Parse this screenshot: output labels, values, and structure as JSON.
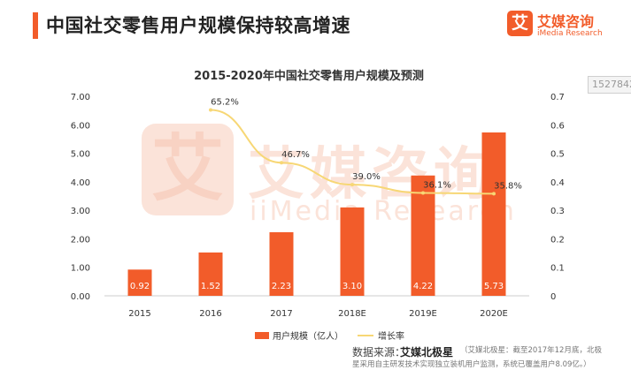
{
  "header": {
    "title": "中国社交零售用户规模保持较高增速",
    "brand_mark": "艾",
    "brand_name": "艾媒咨询",
    "brand_sub": "iMedia Research"
  },
  "side_tab": "1527842",
  "watermark": {
    "mark": "艾",
    "name": "艾媒咨询",
    "sub": "iiMedia Research"
  },
  "colors": {
    "bar": "#f25c2a",
    "line": "#f7d775",
    "accent": "#f25c2a"
  },
  "chart_data": {
    "type": "bar",
    "title": "2015-2020年中国社交零售用户规模及预测",
    "categories": [
      "2015",
      "2016",
      "2017",
      "2018E",
      "2019E",
      "2020E"
    ],
    "series": [
      {
        "name": "用户规模（亿人）",
        "type": "bar",
        "axis": "left",
        "values": [
          0.92,
          1.52,
          2.23,
          3.1,
          4.22,
          5.73
        ],
        "labels": [
          "0.92",
          "1.52",
          "2.23",
          "3.10",
          "4.22",
          "5.73"
        ]
      },
      {
        "name": "增长率",
        "type": "line",
        "axis": "right",
        "values": [
          null,
          0.652,
          0.467,
          0.39,
          0.361,
          0.358
        ],
        "labels": [
          "",
          "65.2%",
          "46.7%",
          "39.0%",
          "36.1%",
          "35.8%"
        ]
      }
    ],
    "ylim": [
      0,
      7
    ],
    "y2lim": [
      0,
      0.7
    ],
    "yticks": [
      "0.00",
      "1.00",
      "2.00",
      "3.00",
      "4.00",
      "5.00",
      "6.00",
      "7.00"
    ],
    "y2ticks": [
      "0",
      "0.1",
      "0.2",
      "0.3",
      "0.4",
      "0.5",
      "0.6",
      "0.7"
    ],
    "grid": false,
    "legend": "bottom"
  },
  "source": {
    "label": "数据来源：",
    "name": "艾媒北极星",
    "note": "（艾媒北极星：截至2017年12月底，北极",
    "note2": "星采用自主研发技术实现独立装机用户监测，系统已覆盖用户8.09亿。）"
  }
}
